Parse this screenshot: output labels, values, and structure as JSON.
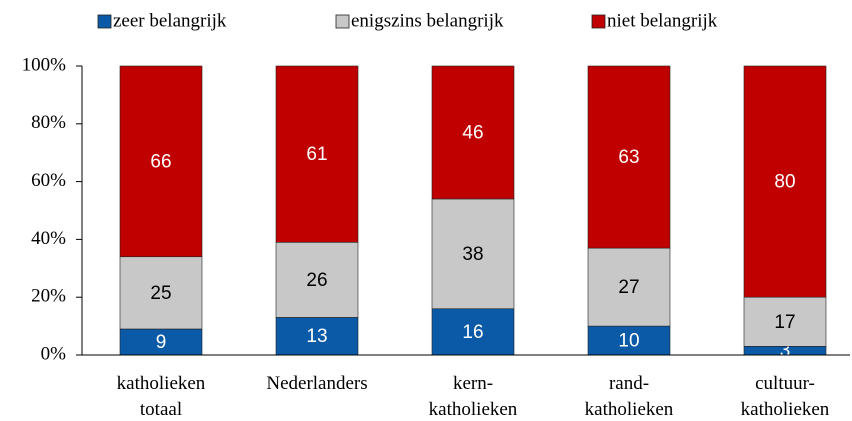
{
  "chart_data": {
    "type": "stacked_bar",
    "categories": [
      [
        "katholieken",
        "totaal"
      ],
      [
        "Nederlanders"
      ],
      [
        "kern-",
        "katholieken"
      ],
      [
        "rand-",
        "katholieken"
      ],
      [
        "cultuur-",
        "katholieken"
      ]
    ],
    "series": [
      {
        "name": "zeer belangrijk",
        "color": "#0b5aa7",
        "label_color": "#ffffff",
        "values": [
          9,
          13,
          16,
          10,
          3
        ]
      },
      {
        "name": "enigszins belangrijk",
        "color": "#c8c8c8",
        "label_color": "#000000",
        "values": [
          25,
          26,
          38,
          27,
          17
        ]
      },
      {
        "name": "niet belangrijk",
        "color": "#c00000",
        "label_color": "#ffffff",
        "values": [
          66,
          61,
          46,
          63,
          80
        ]
      }
    ],
    "ylim": [
      0,
      100
    ],
    "yticks": [
      {
        "value": 0,
        "label": "0%"
      },
      {
        "value": 20,
        "label": "20%"
      },
      {
        "value": 40,
        "label": "40%"
      },
      {
        "value": 60,
        "label": "60%"
      },
      {
        "value": 80,
        "label": "80%"
      },
      {
        "value": 100,
        "label": "100%"
      }
    ],
    "legend": "top"
  }
}
